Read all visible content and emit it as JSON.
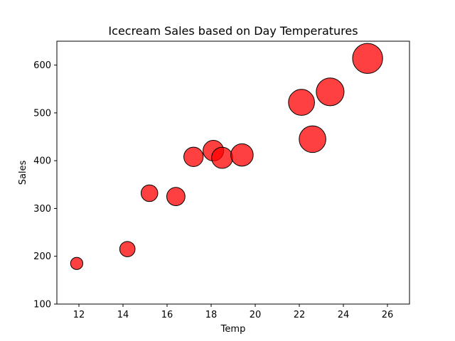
{
  "chart_data": {
    "type": "scatter",
    "title": "Icecream Sales based on Day Temperatures",
    "xlabel": "Temp",
    "ylabel": "Sales",
    "xlim": [
      11,
      27
    ],
    "ylim": [
      100,
      650
    ],
    "xticks": [
      12,
      14,
      16,
      18,
      20,
      22,
      24,
      26
    ],
    "yticks": [
      100,
      200,
      300,
      400,
      500,
      600
    ],
    "grid": false,
    "legend": "none",
    "series": [
      {
        "color": "#ff0000",
        "edge_color": "#000000",
        "points": [
          {
            "x": 11.9,
            "y": 185
          },
          {
            "x": 14.2,
            "y": 215
          },
          {
            "x": 15.2,
            "y": 332
          },
          {
            "x": 16.4,
            "y": 325
          },
          {
            "x": 17.2,
            "y": 408
          },
          {
            "x": 18.1,
            "y": 421
          },
          {
            "x": 18.5,
            "y": 406
          },
          {
            "x": 19.4,
            "y": 412
          },
          {
            "x": 22.1,
            "y": 522
          },
          {
            "x": 22.6,
            "y": 445
          },
          {
            "x": 23.4,
            "y": 544
          },
          {
            "x": 25.1,
            "y": 614
          }
        ]
      }
    ],
    "size_encoding": "Temp"
  }
}
